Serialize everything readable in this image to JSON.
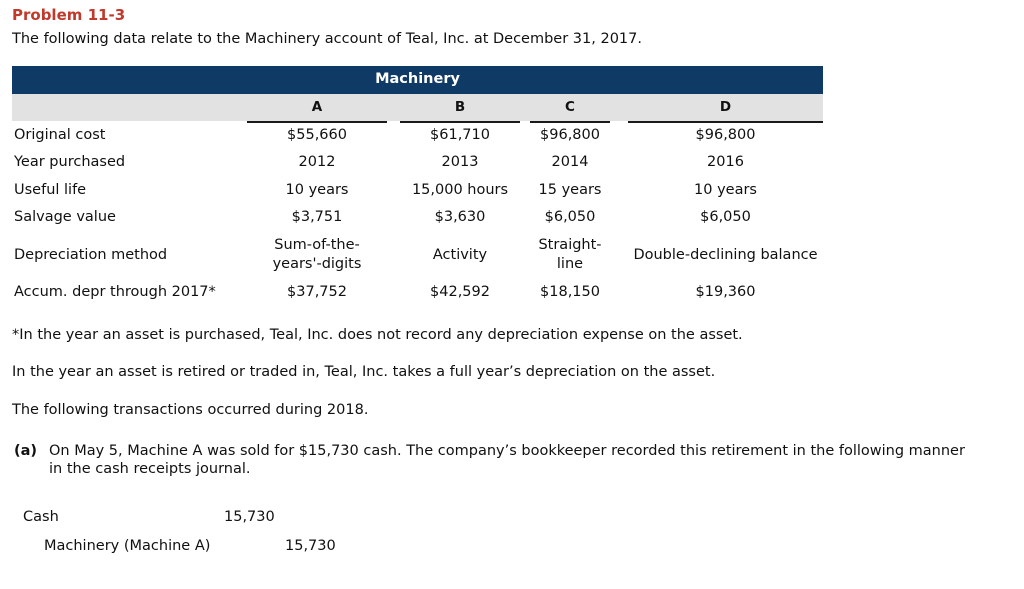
{
  "problem": {
    "title": "Problem 11-3",
    "intro": "The following data relate to the Machinery account of Teal, Inc. at December 31, 2017."
  },
  "table": {
    "header": "Machinery",
    "columns": [
      "A",
      "B",
      "C",
      "D"
    ],
    "rows": [
      {
        "label": "Original cost",
        "values": [
          "$55,660",
          "$61,710",
          "$96,800",
          "$96,800"
        ]
      },
      {
        "label": "Year purchased",
        "values": [
          "2012",
          "2013",
          "2014",
          "2016"
        ]
      },
      {
        "label": "Useful life",
        "values": [
          "10 years",
          "15,000 hours",
          "15 years",
          "10 years"
        ]
      },
      {
        "label": "Salvage value",
        "values": [
          "$3,751",
          "$3,630",
          "$6,050",
          "$6,050"
        ]
      },
      {
        "label": "Depreciation method",
        "values": [
          "Sum-of-the-years'-digits",
          "Activity",
          "Straight-line",
          "Double-declining balance"
        ]
      },
      {
        "label": "Accum. depr through 2017*",
        "values": [
          "$37,752",
          "$42,592",
          "$18,150",
          "$19,360"
        ]
      }
    ]
  },
  "notes": {
    "footnote": "*In the year an asset is purchased, Teal, Inc. does not record any depreciation expense on the asset.",
    "retired": "In the year an asset is retired or traded in, Teal, Inc. takes a full year’s depreciation on the asset.",
    "transactions": "The following transactions occurred during 2018."
  },
  "part_a": {
    "label": "(a)",
    "line1": "On May 5, Machine A was sold for $15,730 cash. The company’s bookkeeper recorded this retirement in the following manner",
    "line2": "in the cash receipts journal."
  },
  "journal": {
    "debit_account": "Cash",
    "debit_amount": "15,730",
    "credit_account": "Machinery (Machine A)",
    "credit_amount": "15,730"
  }
}
